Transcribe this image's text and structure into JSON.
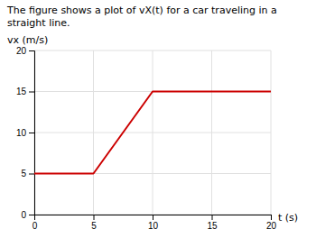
{
  "chart_data": {
    "type": "line",
    "title": "The figure shows a plot of vX(t) for a car traveling in a straight line.",
    "x": [
      0,
      5,
      10,
      20
    ],
    "values": [
      5,
      5,
      15,
      15
    ],
    "color": "#cc0000",
    "xlabel": "t (s)",
    "ylabel": "vx (m/s)",
    "xlim": [
      0,
      20
    ],
    "ylim": [
      0,
      20
    ],
    "xticks": [
      0,
      5,
      10,
      15,
      20
    ],
    "yticks": [
      0,
      5,
      10,
      15,
      20
    ],
    "grid": true
  }
}
